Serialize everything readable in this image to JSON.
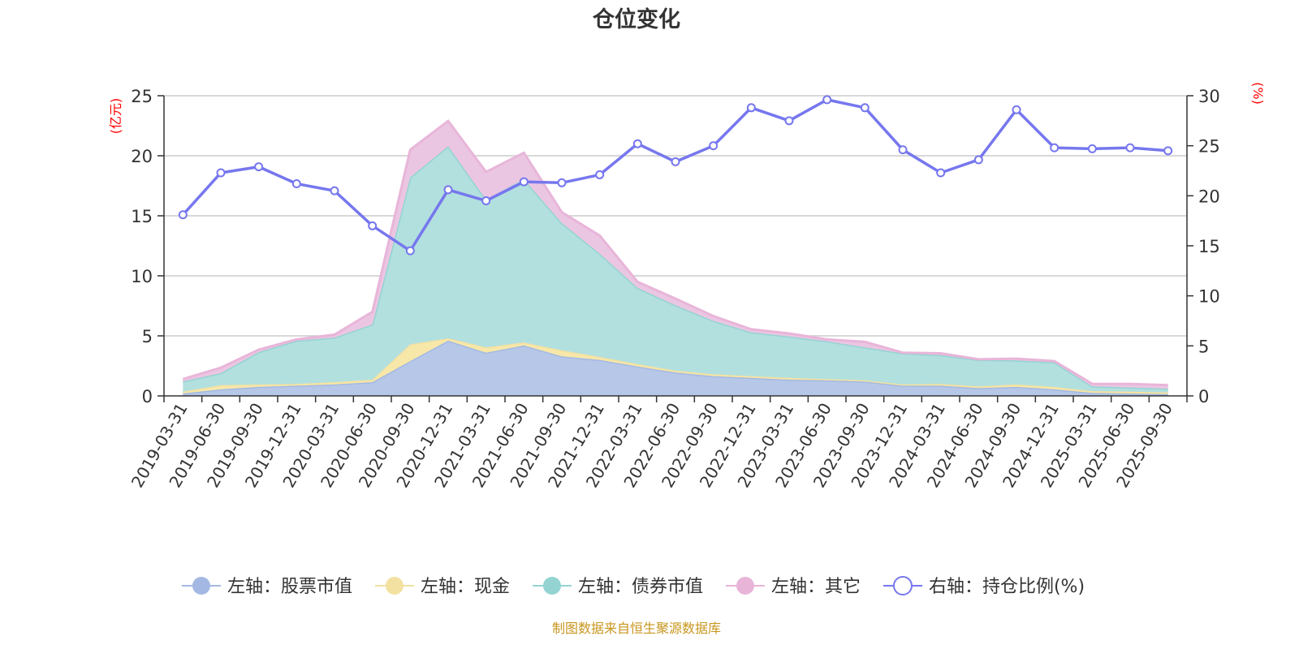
{
  "chart_data": {
    "type": "area",
    "title": "仓位变化",
    "left_axis_label": "(亿元)",
    "right_axis_label": "(%)",
    "left_ylim": [
      0,
      25
    ],
    "left_ticks": [
      0,
      5,
      10,
      15,
      20,
      25
    ],
    "right_ylim": [
      0,
      30
    ],
    "right_ticks": [
      0,
      5,
      10,
      15,
      20,
      25,
      30
    ],
    "categories": [
      "2019-03-31",
      "2019-06-30",
      "2019-09-30",
      "2019-12-31",
      "2020-03-31",
      "2020-06-30",
      "2020-09-30",
      "2020-12-31",
      "2021-03-31",
      "2021-06-30",
      "2021-09-30",
      "2021-12-31",
      "2022-03-31",
      "2022-06-30",
      "2022-09-30",
      "2022-12-31",
      "2023-03-31",
      "2023-06-30",
      "2023-09-30",
      "2023-12-31",
      "2024-03-31",
      "2024-06-30",
      "2024-09-30",
      "2024-12-31",
      "2025-03-31",
      "2025-06-30",
      "2025-09-30"
    ],
    "series": [
      {
        "name": "左轴：股票市值",
        "axis": "left",
        "color": "#a3b9e3",
        "fill": "#b6c7e8",
        "values": [
          0.2,
          0.55,
          0.75,
          0.85,
          0.95,
          1.15,
          2.9,
          4.6,
          3.6,
          4.2,
          3.3,
          3.0,
          2.45,
          1.95,
          1.65,
          1.5,
          1.35,
          1.3,
          1.2,
          0.85,
          0.85,
          0.65,
          0.75,
          0.55,
          0.25,
          0.2,
          0.15
        ]
      },
      {
        "name": "左轴：现金",
        "axis": "left",
        "color": "#f3e1a2",
        "fill": "#f7e7a8",
        "values": [
          0.15,
          0.35,
          0.2,
          0.15,
          0.2,
          0.2,
          1.4,
          0.2,
          0.45,
          0.25,
          0.5,
          0.25,
          0.2,
          0.15,
          0.15,
          0.15,
          0.15,
          0.1,
          0.1,
          0.1,
          0.15,
          0.15,
          0.2,
          0.2,
          0.15,
          0.15,
          0.15
        ]
      },
      {
        "name": "左轴：债券市值",
        "axis": "left",
        "color": "#93d4d3",
        "fill": "#b2e0df",
        "values": [
          0.85,
          1.0,
          2.7,
          3.6,
          3.7,
          4.6,
          13.9,
          16.0,
          12.3,
          13.6,
          10.6,
          8.6,
          6.35,
          5.45,
          4.45,
          3.65,
          3.45,
          3.15,
          2.75,
          2.6,
          2.4,
          2.2,
          2.0,
          2.05,
          0.4,
          0.35,
          0.3
        ]
      },
      {
        "name": "左轴：其它",
        "axis": "left",
        "color": "#e8b5d9",
        "fill": "#ebc6e2",
        "values": [
          0.2,
          0.45,
          0.2,
          0.1,
          0.25,
          1.05,
          2.3,
          2.1,
          2.3,
          2.2,
          0.9,
          1.5,
          0.5,
          0.55,
          0.4,
          0.25,
          0.25,
          0.15,
          0.45,
          0.05,
          0.15,
          0.05,
          0.15,
          0.1,
          0.2,
          0.3,
          0.3
        ]
      },
      {
        "name": "右轴：持仓比例(%)",
        "axis": "right",
        "color": "#7677ee",
        "values": [
          18.1,
          22.3,
          22.9,
          21.2,
          20.5,
          17.0,
          14.5,
          20.6,
          19.5,
          21.4,
          21.3,
          22.1,
          25.2,
          23.4,
          25.0,
          28.8,
          27.5,
          29.6,
          28.8,
          24.6,
          22.3,
          23.6,
          28.6,
          24.8,
          24.7,
          24.8,
          24.5
        ]
      }
    ],
    "source_note": "制图数据来自恒生聚源数据库"
  },
  "colors": {
    "axis_left_label": "#ff0000",
    "axis_right_label": "#ff0000",
    "source_note": "#c8961e",
    "grid": "#cccccc",
    "axis": "#333333"
  }
}
